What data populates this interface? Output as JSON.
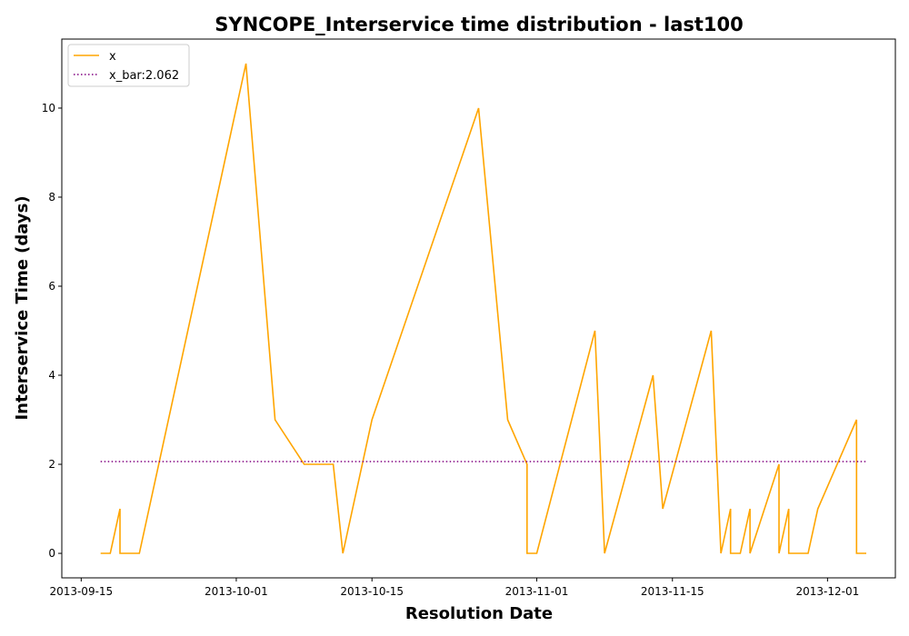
{
  "chart_data": {
    "type": "line",
    "title": "SYNCOPE_Interservice time distribution - last100",
    "xlabel": "Resolution Date",
    "ylabel": "Interservice Time (days)",
    "xlim": [
      "2013-09-13",
      "2013-12-08"
    ],
    "ylim": [
      -0.55,
      11.55
    ],
    "x_ticks": [
      "2013-09-15",
      "2013-10-01",
      "2013-10-15",
      "2013-11-01",
      "2013-11-15",
      "2013-12-01"
    ],
    "y_ticks": [
      0,
      2,
      4,
      6,
      8,
      10
    ],
    "legend_position": "top-left",
    "grid": false,
    "series": [
      {
        "name": "x",
        "color": "#ffa500",
        "style": "solid",
        "x": [
          "2013-09-17",
          "2013-09-18",
          "2013-09-19",
          "2013-09-19",
          "2013-09-21",
          "2013-10-02",
          "2013-10-05",
          "2013-10-08",
          "2013-10-11",
          "2013-10-12",
          "2013-10-15",
          "2013-10-26",
          "2013-10-29",
          "2013-10-31",
          "2013-10-31",
          "2013-11-01",
          "2013-11-07",
          "2013-11-08",
          "2013-11-13",
          "2013-11-14",
          "2013-11-19",
          "2013-11-20",
          "2013-11-21",
          "2013-11-21",
          "2013-11-22",
          "2013-11-23",
          "2013-11-23",
          "2013-11-26",
          "2013-11-26",
          "2013-11-27",
          "2013-11-27",
          "2013-11-29",
          "2013-11-30",
          "2013-12-04",
          "2013-12-04",
          "2013-12-05"
        ],
        "values": [
          0,
          0,
          1,
          0,
          0,
          11,
          3,
          2,
          2,
          0,
          3,
          10,
          3,
          2,
          0,
          0,
          5,
          0,
          4,
          1,
          5,
          0,
          1,
          0,
          0,
          1,
          0,
          2,
          0,
          1,
          0,
          0,
          1,
          3,
          0,
          0
        ]
      },
      {
        "name": "x_bar:2.062",
        "color": "#800080",
        "style": "dotted",
        "x": [
          "2013-09-17",
          "2013-12-05"
        ],
        "values": [
          2.062,
          2.062
        ]
      }
    ]
  }
}
